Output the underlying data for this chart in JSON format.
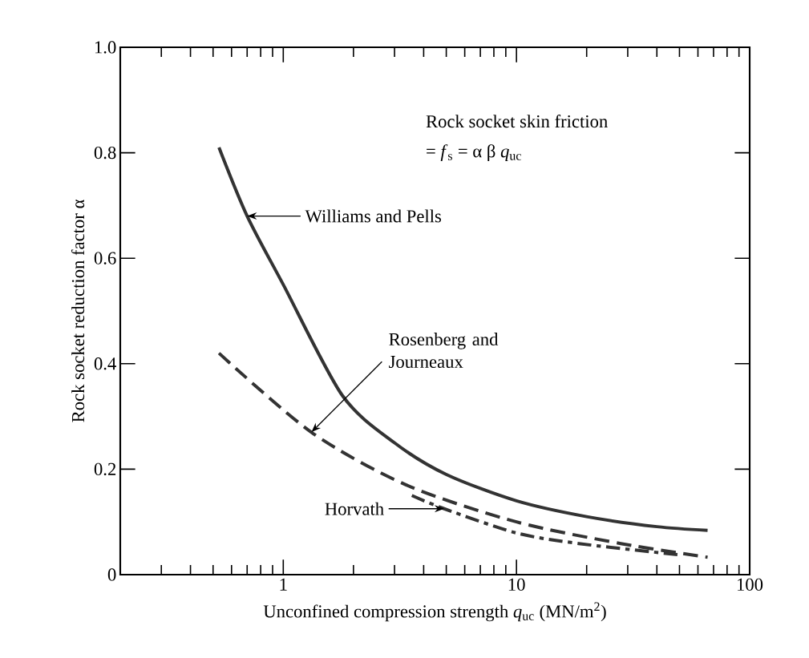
{
  "chart_data": {
    "type": "line",
    "xlabel": "Unconfined compression strength *q*$_{uc}$ (MN/m$^{2}$)",
    "ylabel": "Rock socket reduction factor α",
    "log": "x",
    "xlim": [
      0.2,
      100
    ],
    "ylim": [
      0,
      1
    ],
    "xticks": [
      {
        "value": 0.3,
        "label": null
      },
      {
        "value": 0.4,
        "label": null
      },
      {
        "value": 0.5,
        "label": null
      },
      {
        "value": 0.6,
        "label": null
      },
      {
        "value": 0.7,
        "label": null
      },
      {
        "value": 0.8,
        "label": null
      },
      {
        "value": 0.9,
        "label": null
      },
      1,
      {
        "value": 2,
        "label": null
      },
      {
        "value": 3,
        "label": null
      },
      {
        "value": 4,
        "label": null
      },
      {
        "value": 5,
        "label": null
      },
      {
        "value": 6,
        "label": null
      },
      {
        "value": 7,
        "label": null
      },
      {
        "value": 8,
        "label": null
      },
      {
        "value": 9,
        "label": null
      },
      10,
      {
        "value": 20,
        "label": null
      },
      {
        "value": 30,
        "label": null
      },
      {
        "value": 40,
        "label": null
      },
      {
        "value": 50,
        "label": null
      },
      {
        "value": 60,
        "label": null
      },
      {
        "value": 70,
        "label": null
      },
      {
        "value": 80,
        "label": null
      },
      {
        "value": 90,
        "label": null
      },
      100
    ],
    "yticks": [
      0,
      0.2,
      0.4,
      0.6,
      0.8,
      {
        "value": 1,
        "label": "1.0"
      }
    ],
    "series": [
      {
        "color": "#333333",
        "line_style": "solid",
        "x": [
          0.53,
          0.7,
          1,
          1.79,
          3,
          5,
          10,
          20,
          40,
          66
        ],
        "values": [
          0.81,
          0.68,
          0.55,
          0.34,
          0.25,
          0.19,
          0.14,
          0.11,
          0.091,
          0.084
        ]
      },
      {
        "color": "#333333",
        "line_style": "dashed",
        "x": [
          0.53,
          1.32,
          3.37,
          10,
          28,
          66
        ],
        "values": [
          0.42,
          0.27,
          0.17,
          0.1,
          0.059,
          0.033
        ]
      },
      {
        "color": "#333333",
        "line_style": "dashdot",
        "x": [
          3.56,
          4.9,
          10,
          18.5,
          49
        ],
        "values": [
          0.15,
          0.125,
          0.079,
          0.059,
          0.038
        ]
      }
    ],
    "annotations": [
      "Rock socket skin friction",
      "= *f*$_{s}$ = α β *q*$_{uc}$",
      {
        "text": "Williams and Pells",
        "x": 0.7,
        "y": 0.68
      },
      {
        "text": "Rosenberg and Journeaux",
        "x": 1.32,
        "y": 0.27
      },
      {
        "text": "Horvath",
        "x": 4.9,
        "y": 0.125
      }
    ]
  }
}
